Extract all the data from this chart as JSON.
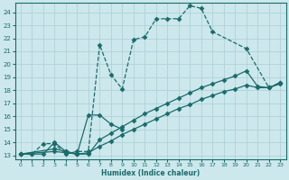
{
  "xlabel": "Humidex (Indice chaleur)",
  "ylabel": "",
  "bg_color": "#cce8ec",
  "line_color": "#1a6b6b",
  "grid_color": "#aacdd4",
  "xlim": [
    -0.5,
    23.5
  ],
  "ylim": [
    12.7,
    24.7
  ],
  "xticks": [
    0,
    1,
    2,
    3,
    4,
    5,
    6,
    7,
    8,
    9,
    10,
    11,
    12,
    13,
    14,
    15,
    16,
    17,
    18,
    19,
    20,
    21,
    22,
    23
  ],
  "yticks": [
    13,
    14,
    15,
    16,
    17,
    18,
    19,
    20,
    21,
    22,
    23,
    24
  ],
  "series": [
    {
      "x": [
        0,
        1,
        2,
        3,
        4,
        5,
        6,
        7,
        8,
        9,
        10,
        11,
        12,
        13,
        14,
        15,
        16,
        17,
        20,
        22,
        23
      ],
      "y": [
        13.1,
        13.1,
        13.9,
        13.9,
        13.1,
        13.3,
        13.3,
        21.5,
        19.2,
        18.1,
        21.9,
        22.1,
        23.5,
        23.5,
        23.5,
        24.5,
        24.3,
        22.5,
        21.2,
        18.2,
        18.6
      ],
      "linestyle": "--"
    },
    {
      "x": [
        0,
        3,
        4,
        5,
        6,
        7,
        8,
        9,
        10,
        11,
        12,
        13,
        14,
        15,
        16,
        17,
        18,
        19,
        20,
        21,
        22,
        23
      ],
      "y": [
        13.1,
        13.5,
        13.3,
        13.1,
        13.1,
        14.2,
        14.7,
        15.2,
        15.7,
        16.2,
        16.6,
        17.0,
        17.4,
        17.8,
        18.2,
        18.5,
        18.8,
        19.1,
        19.5,
        18.3,
        18.2,
        18.5
      ],
      "linestyle": "-"
    },
    {
      "x": [
        0,
        3,
        4,
        5,
        6,
        7,
        8,
        9,
        10,
        11,
        12,
        13,
        14,
        15,
        16,
        17,
        18,
        19,
        20,
        21,
        22,
        23
      ],
      "y": [
        13.1,
        13.3,
        13.2,
        13.1,
        13.2,
        13.7,
        14.1,
        14.6,
        15.0,
        15.4,
        15.8,
        16.2,
        16.6,
        16.9,
        17.3,
        17.6,
        17.9,
        18.1,
        18.4,
        18.2,
        18.2,
        18.6
      ],
      "linestyle": "-"
    },
    {
      "x": [
        0,
        1,
        2,
        3,
        4,
        5,
        6,
        7,
        8,
        9
      ],
      "y": [
        13.1,
        13.1,
        13.1,
        14.0,
        13.3,
        13.1,
        16.1,
        16.1,
        15.4,
        15.0
      ],
      "linestyle": "-"
    }
  ]
}
